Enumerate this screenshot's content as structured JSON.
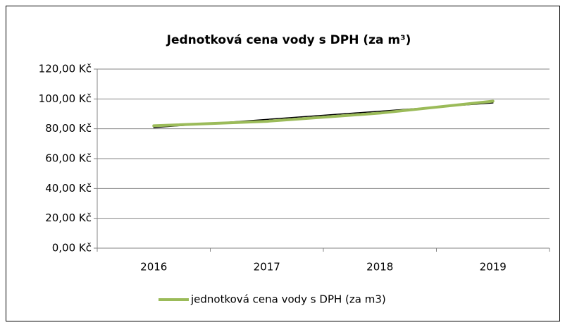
{
  "chart_data": {
    "type": "line",
    "title": "Jednotková cena vody s DPH  (za m³)",
    "categories": [
      "2016",
      "2017",
      "2018",
      "2019"
    ],
    "series": [
      {
        "name": "jednotková cena vody s DPH  (za m3)",
        "color": "#9bbb59",
        "values": [
          82,
          85,
          90.5,
          98.5
        ]
      },
      {
        "color": "#000000",
        "values": [
          80.8,
          86.3,
          91.8,
          97.3
        ]
      }
    ],
    "ylim": [
      0,
      120
    ],
    "yticks": [
      {
        "value": 0,
        "label": "0,00 Kč"
      },
      {
        "value": 20,
        "label": "20,00 Kč"
      },
      {
        "value": 40,
        "label": "40,00 Kč"
      },
      {
        "value": 60,
        "label": "60,00 Kč"
      },
      {
        "value": 80,
        "label": "80,00 Kč"
      },
      {
        "value": 100,
        "label": "100,00 Kč"
      },
      {
        "value": 120,
        "label": "120,00 Kč"
      }
    ],
    "grid": true,
    "legend": "bottom"
  }
}
